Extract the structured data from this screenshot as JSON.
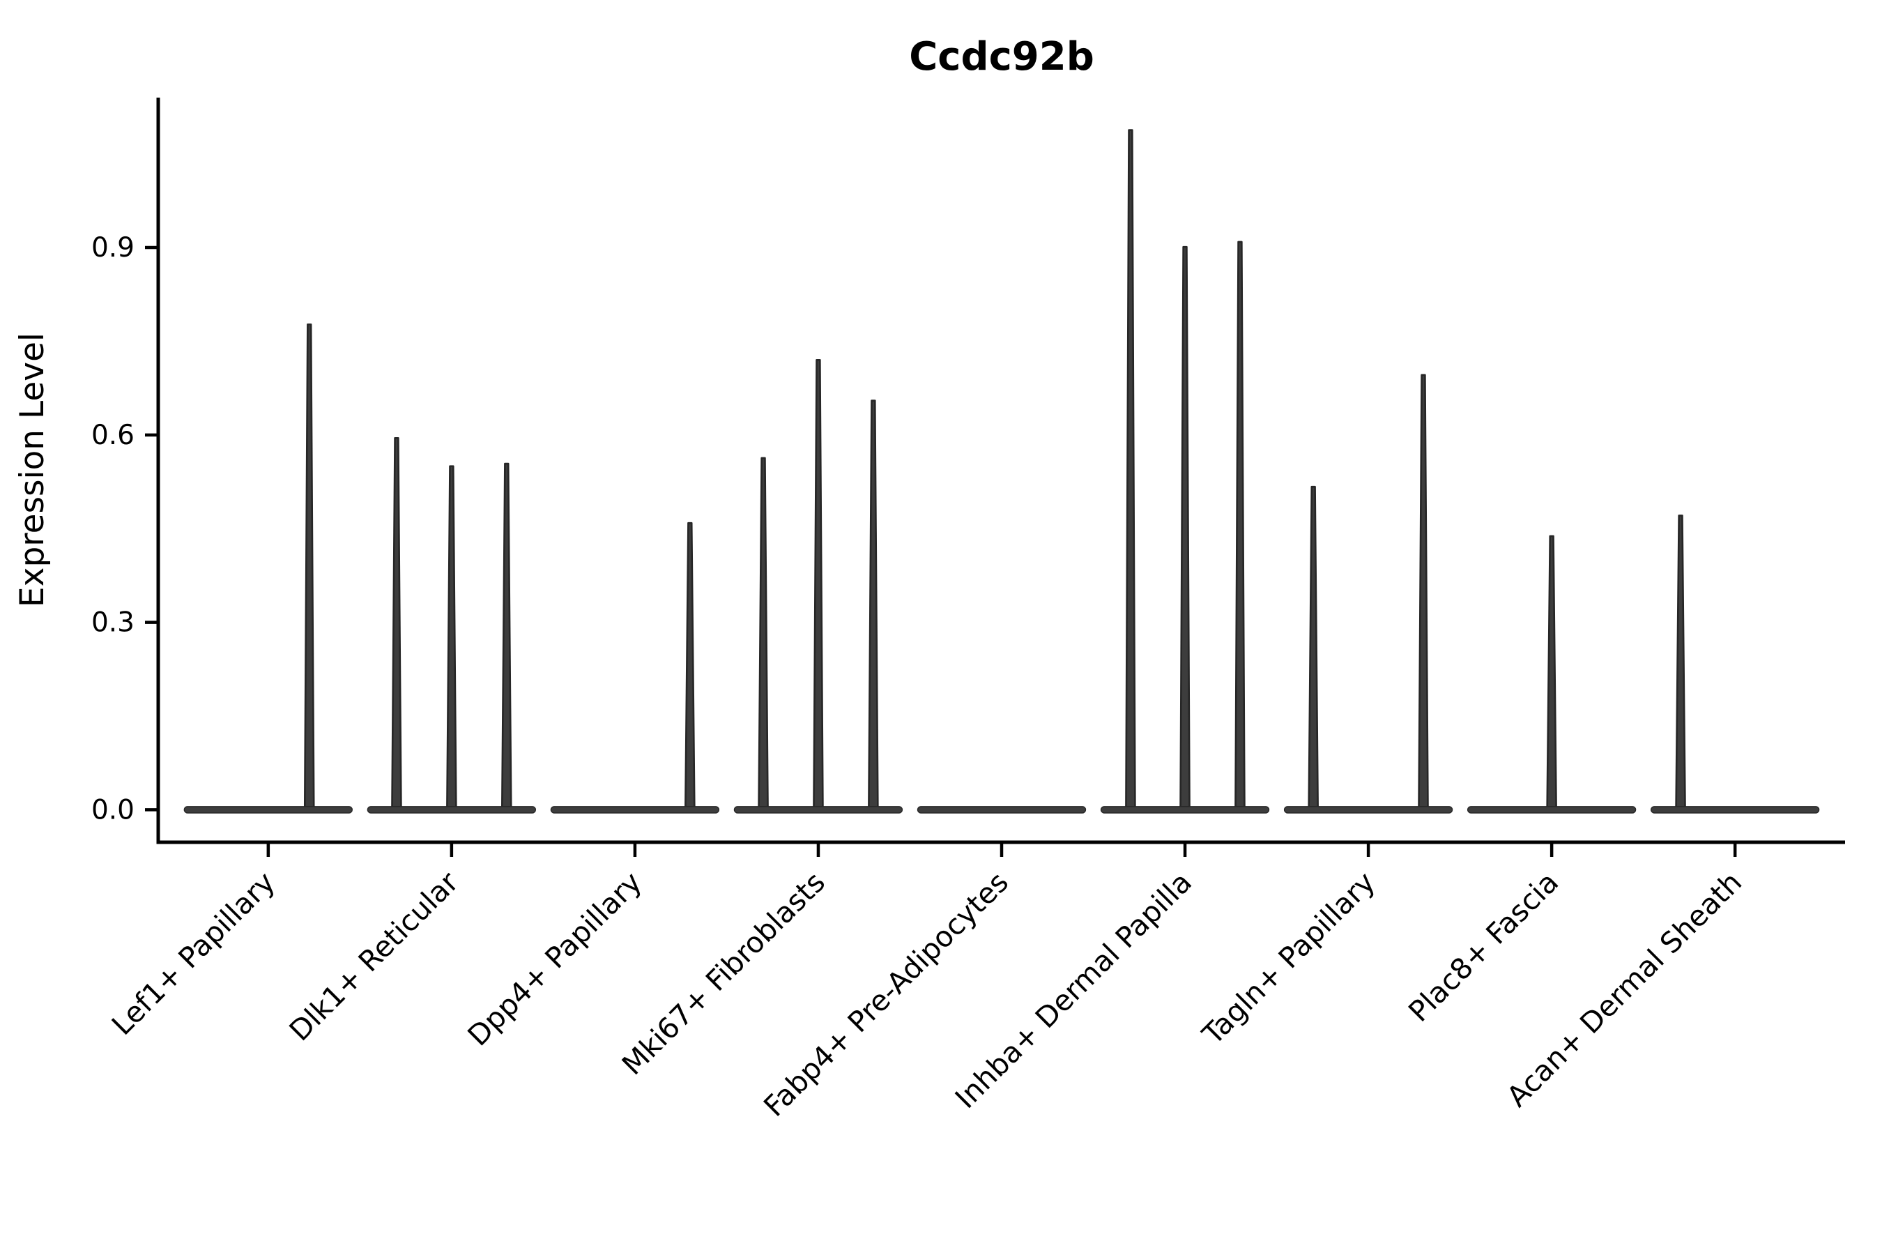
{
  "chart_data": {
    "type": "violin",
    "title": "Ccdc92b",
    "xlabel": "",
    "ylabel": "Expression Level",
    "ytick_labels": [
      "0.0",
      "0.3",
      "0.6",
      "0.9"
    ],
    "ytick_values": [
      0,
      0.3,
      0.6,
      0.9
    ],
    "ylim": [
      -0.052,
      1.14
    ],
    "grid": false,
    "legend": "none",
    "axis_color": "#000000",
    "violin_fill": "#3d3d3d",
    "violin_stroke": "#262626",
    "categories": [
      {
        "label": "Lef1+ Papillary",
        "spikes": [
          {
            "offset": 0.224,
            "value": 0.777
          }
        ]
      },
      {
        "label": "Dlk1+ Reticular",
        "spikes": [
          {
            "offset": -0.3,
            "value": 0.595
          },
          {
            "offset": 0,
            "value": 0.55
          },
          {
            "offset": 0.3,
            "value": 0.554
          }
        ]
      },
      {
        "label": "Dpp4+ Papillary",
        "spikes": [
          {
            "offset": 0.3,
            "value": 0.459
          }
        ]
      },
      {
        "label": "Mki67+ Fibroblasts",
        "spikes": [
          {
            "offset": -0.3,
            "value": 0.563
          },
          {
            "offset": 0,
            "value": 0.72
          },
          {
            "offset": 0.3,
            "value": 0.655
          }
        ]
      },
      {
        "label": "Fabp4+ Pre-Adipocytes",
        "spikes": []
      },
      {
        "label": "Inhba+ Dermal Papilla",
        "spikes": [
          {
            "offset": -0.297,
            "value": 1.088
          },
          {
            "offset": 0,
            "value": 0.901
          },
          {
            "offset": 0.3,
            "value": 0.909
          }
        ]
      },
      {
        "label": "Tagln+ Papillary",
        "spikes": [
          {
            "offset": -0.3,
            "value": 0.517
          },
          {
            "offset": 0.3,
            "value": 0.696
          }
        ]
      },
      {
        "label": "Plac8+ Fascia",
        "spikes": [
          {
            "offset": 0,
            "value": 0.438
          }
        ]
      },
      {
        "label": "Acan+ Dermal Sheath",
        "spikes": [
          {
            "offset": -0.297,
            "value": 0.471
          }
        ]
      }
    ]
  }
}
